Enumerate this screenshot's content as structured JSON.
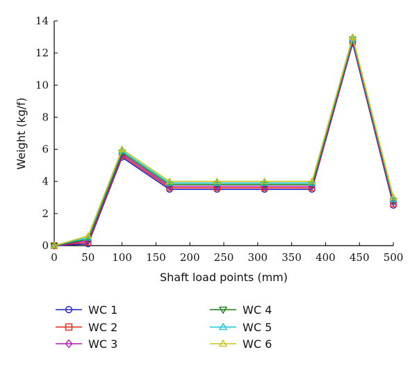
{
  "chart_data": {
    "type": "line",
    "title": "",
    "xlabel": "Shaft load points (mm)",
    "ylabel": "Weight (kg/f)",
    "xlim": [
      0,
      500
    ],
    "ylim": [
      0,
      14
    ],
    "x_ticks": [
      0,
      50,
      100,
      150,
      200,
      250,
      300,
      350,
      400,
      450,
      500
    ],
    "y_ticks": [
      0,
      2,
      4,
      6,
      8,
      10,
      12,
      14
    ],
    "grid": false,
    "legend": "bottom",
    "x": [
      0,
      50,
      100,
      170,
      240,
      310,
      380,
      440,
      500
    ],
    "series": [
      {
        "name": "WC 1",
        "color": "#1f1fcc",
        "marker": "circle",
        "values": [
          0,
          0.1,
          5.5,
          3.5,
          3.5,
          3.5,
          3.5,
          12.6,
          2.5
        ]
      },
      {
        "name": "WC 2",
        "color": "#e0261b",
        "marker": "square",
        "values": [
          0,
          0.2,
          5.6,
          3.6,
          3.6,
          3.6,
          3.6,
          12.7,
          2.6
        ]
      },
      {
        "name": "WC 3",
        "color": "#b31ab3",
        "marker": "diamond",
        "values": [
          0,
          0.3,
          5.7,
          3.7,
          3.7,
          3.7,
          3.7,
          12.8,
          2.7
        ]
      },
      {
        "name": "WC 4",
        "color": "#168016",
        "marker": "triangle-down",
        "values": [
          0,
          0.4,
          5.8,
          3.8,
          3.8,
          3.8,
          3.8,
          12.85,
          2.8
        ]
      },
      {
        "name": "WC 5",
        "color": "#1fc6d6",
        "marker": "triangle-up",
        "values": [
          0,
          0.5,
          5.9,
          3.9,
          3.9,
          3.9,
          3.9,
          12.9,
          2.9
        ]
      },
      {
        "name": "WC 6",
        "color": "#c9c41a",
        "marker": "triangle-up",
        "values": [
          0,
          0.6,
          6.0,
          4.0,
          4.0,
          4.0,
          4.0,
          13.0,
          3.0
        ]
      }
    ]
  }
}
